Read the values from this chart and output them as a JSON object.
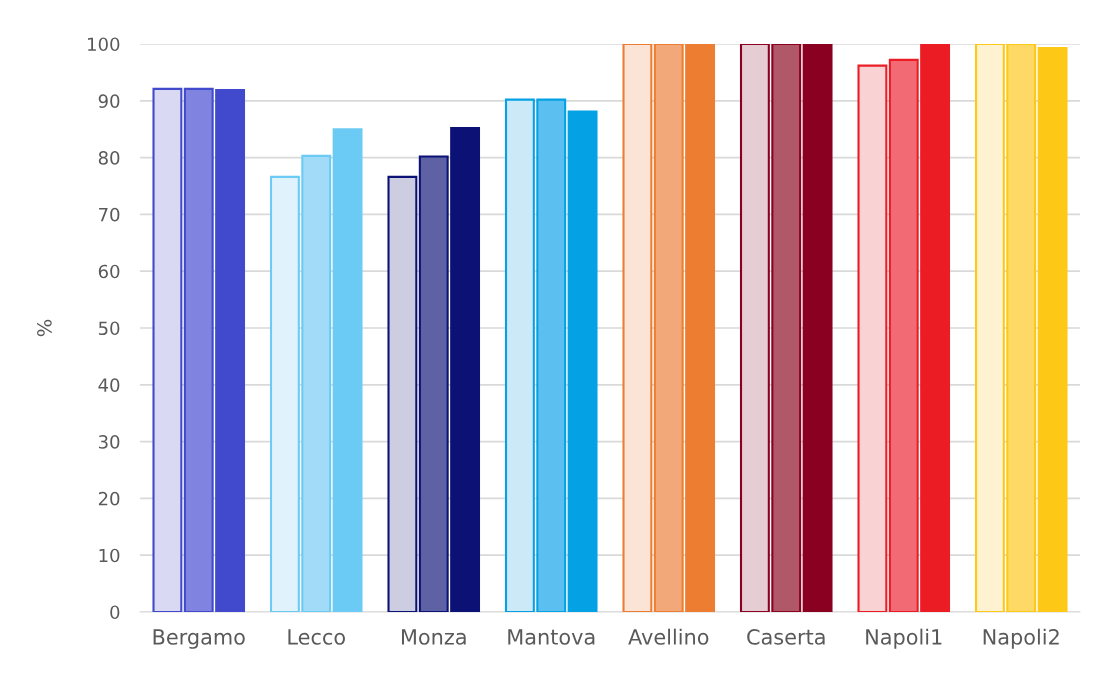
{
  "chart_data": {
    "type": "bar",
    "ylabel": "%",
    "categories": [
      "Bergamo",
      "Lecco",
      "Monza",
      "Mantova",
      "Avellino",
      "Caserta",
      "Napoli1",
      "Napoli2"
    ],
    "series": [
      {
        "values": [
          92.1,
          76.6,
          76.6,
          90.2,
          100,
          100,
          96.2,
          100
        ],
        "colors": [
          "#d9d9f3",
          "#e0f3fc",
          "#cccde1",
          "#cce9f8",
          "#fbe4d6",
          "#e6ccd3",
          "#f9d2d4",
          "#fef2d1"
        ]
      },
      {
        "values": [
          92.1,
          80.3,
          80.2,
          90.2,
          100,
          100,
          97.2,
          100
        ],
        "colors": [
          "#8083df",
          "#a2dbf7",
          "#5e61a3",
          "#5bbfef",
          "#f2a878",
          "#b05768",
          "#f26b74",
          "#ffd966"
        ]
      },
      {
        "values": [
          91.9,
          85.0,
          85.2,
          88.1,
          100,
          100,
          100,
          99.3
        ],
        "colors": [
          "#4149cc",
          "#6ccbf4",
          "#0c1275",
          "#04a2e5",
          "#ed7d31",
          "#8a0020",
          "#ec1c24",
          "#fec817"
        ]
      }
    ],
    "ylim": [
      0,
      100
    ],
    "yticks": [
      0,
      10,
      20,
      30,
      40,
      50,
      60,
      70,
      80,
      90,
      100
    ],
    "grid": "y"
  }
}
